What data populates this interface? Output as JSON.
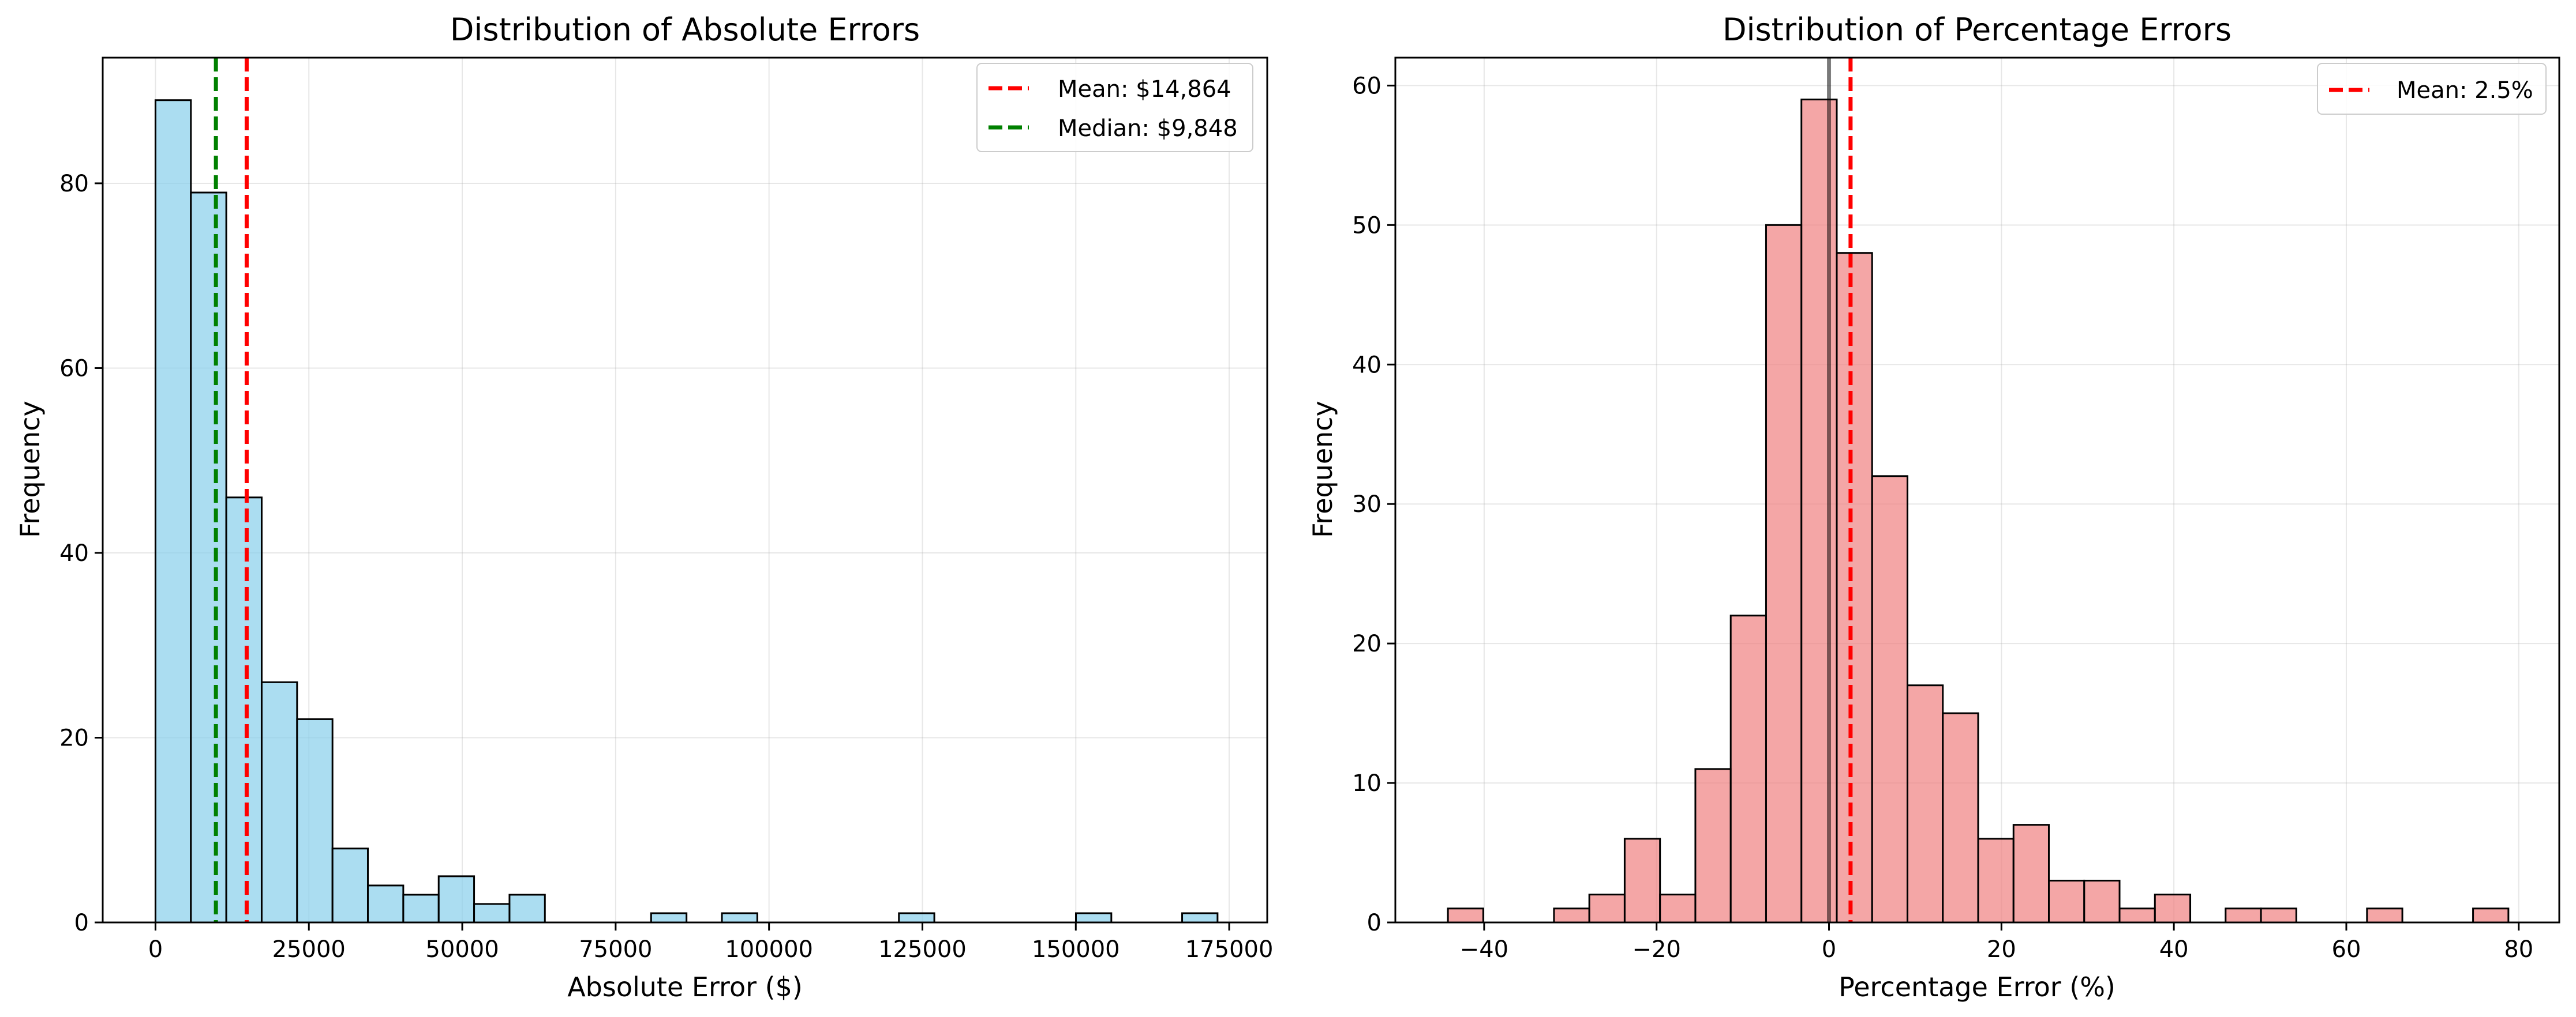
{
  "chart_data": [
    {
      "type": "bar",
      "title": "Distribution of Absolute Errors",
      "xlabel": "Absolute Error ($)",
      "ylabel": "Frequency",
      "xlim": [
        -8600,
        181200
      ],
      "ylim": [
        0,
        93.6
      ],
      "xticks": [
        0,
        25000,
        50000,
        75000,
        100000,
        125000,
        150000,
        175000
      ],
      "xtick_labels": [
        "0",
        "25000",
        "50000",
        "75000",
        "100000",
        "125000",
        "150000",
        "175000"
      ],
      "yticks": [
        0,
        20,
        40,
        60,
        80
      ],
      "ytick_labels": [
        "0",
        "20",
        "40",
        "60",
        "80"
      ],
      "grid": true,
      "bar_color": "#87CEEB",
      "bin_start": 0,
      "bin_width": 5770,
      "values": [
        89,
        79,
        46,
        26,
        22,
        8,
        4,
        3,
        5,
        2,
        3,
        0,
        0,
        0,
        1,
        0,
        1,
        0,
        0,
        0,
        0,
        1,
        0,
        0,
        0,
        0,
        1,
        0,
        0,
        1
      ],
      "reference_lines": [
        {
          "label": "Mean: $14,864",
          "x": 14864,
          "color": "#ff0000"
        },
        {
          "label": "Median: $9,848",
          "x": 9848,
          "color": "#008000"
        }
      ],
      "legend_position": "top-right",
      "zero_line": null
    },
    {
      "type": "bar",
      "title": "Distribution of Percentage Errors",
      "xlabel": "Percentage Error (%)",
      "ylabel": "Frequency",
      "xlim": [
        -50.3,
        84.7
      ],
      "ylim": [
        0,
        62
      ],
      "xticks": [
        -40,
        -20,
        0,
        20,
        40,
        60,
        80
      ],
      "xtick_labels": [
        "−40",
        "−20",
        "0",
        "20",
        "40",
        "60",
        "80"
      ],
      "yticks": [
        0,
        10,
        20,
        30,
        40,
        50,
        60
      ],
      "ytick_labels": [
        "0",
        "10",
        "20",
        "30",
        "40",
        "50",
        "60"
      ],
      "grid": true,
      "bar_color": "#F08080",
      "bin_start": -44.2,
      "bin_width": 4.1,
      "values": [
        1,
        0,
        0,
        1,
        2,
        6,
        2,
        11,
        22,
        50,
        59,
        48,
        32,
        17,
        15,
        6,
        7,
        3,
        3,
        1,
        2,
        0,
        1,
        1,
        0,
        0,
        1,
        0,
        0,
        1
      ],
      "reference_lines": [
        {
          "label": "Mean: 2.5%",
          "x": 2.5,
          "color": "#ff0000"
        }
      ],
      "legend_position": "top-right",
      "zero_line": {
        "x": 0,
        "color": "#000000"
      }
    }
  ]
}
